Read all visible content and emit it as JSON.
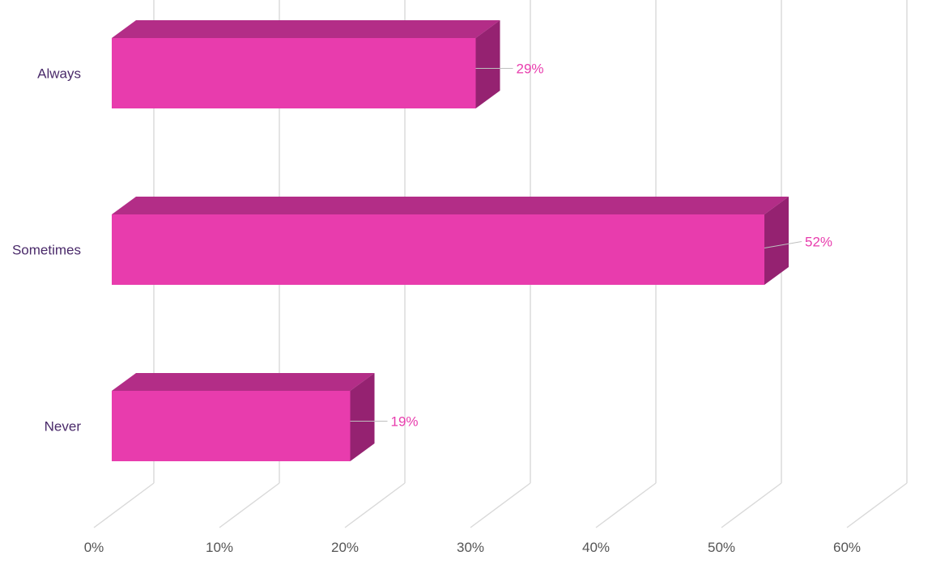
{
  "chart_data": {
    "type": "bar",
    "orientation": "horizontal",
    "three_d": true,
    "categories": [
      "Always",
      "Sometimes",
      "Never"
    ],
    "values": [
      29,
      52,
      19
    ],
    "data_labels": [
      "29%",
      "52%",
      "19%"
    ],
    "x_ticks": [
      "0%",
      "10%",
      "20%",
      "30%",
      "40%",
      "50%",
      "60%"
    ],
    "xlim": [
      0,
      60
    ],
    "grid": true,
    "legend": "none",
    "colors": {
      "bar_front": "#e83cad",
      "bar_top": "#b32d87",
      "bar_side": "#952271",
      "data_label": "#e83cad",
      "category_label": "#4a2a6a",
      "tick_label": "#555555",
      "grid": "#d9d9d9"
    }
  }
}
